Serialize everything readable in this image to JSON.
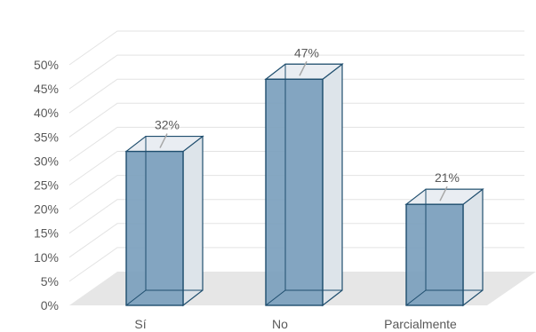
{
  "chart_data": {
    "type": "bar",
    "categories": [
      "Sí",
      "No",
      "Parcialmente"
    ],
    "values": [
      32,
      47,
      21
    ],
    "data_labels": [
      "32%",
      "47%",
      "21%"
    ],
    "ylim": [
      0,
      50
    ],
    "yticks": [
      "0%",
      "5%",
      "10%",
      "15%",
      "20%",
      "25%",
      "30%",
      "35%",
      "40%",
      "45%",
      "50%"
    ],
    "title": "",
    "xlabel": "",
    "ylabel": "",
    "grid": true,
    "legend": "none",
    "colors": {
      "bar_front": "#7b9fbd",
      "bar_edge": "#1f4e6e",
      "bar_ghost": "#dde3ea",
      "floor": "#e6e6e6"
    }
  }
}
